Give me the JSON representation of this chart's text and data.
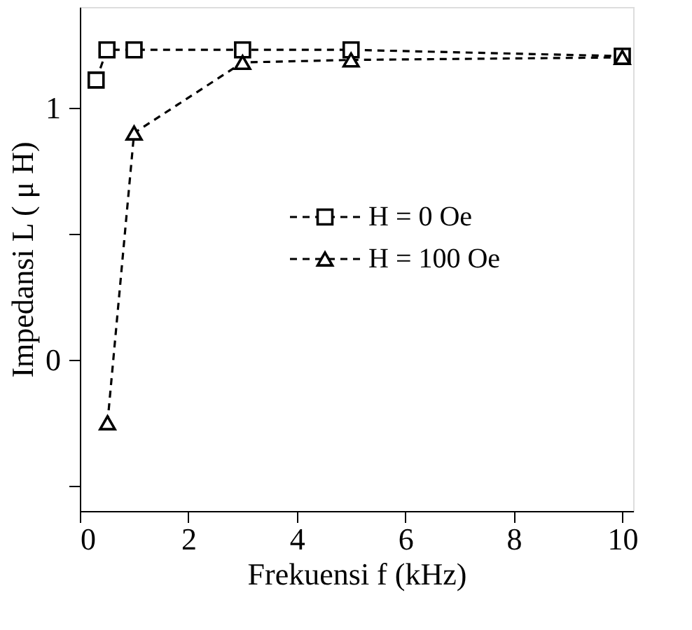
{
  "chart_data": {
    "type": "line",
    "xlabel": "Frekuensi f (kHz)",
    "ylabel": "Impedansi L ( μ H)",
    "xlim": [
      0,
      10.2
    ],
    "xticks": [
      0,
      2,
      4,
      6,
      8,
      10
    ],
    "ylim": [
      -0.6,
      1.4
    ],
    "yticks": [
      {
        "value": -0.5,
        "label": null
      },
      0,
      {
        "value": 0.5,
        "label": null
      },
      1
    ],
    "series": [
      {
        "name": "H = 0 Oe",
        "color": "#000000",
        "marker": "square",
        "x": [
          0.3,
          0.5,
          1,
          3,
          5,
          10
        ],
        "values": [
          1.11,
          1.23,
          1.23,
          1.23,
          1.23,
          1.205
        ]
      },
      {
        "name": "H = 100 Oe",
        "color": "#000000",
        "marker": "triangle",
        "x": [
          0.51,
          1,
          3,
          5,
          10
        ],
        "values": [
          -0.25,
          0.9,
          1.18,
          1.19,
          1.2
        ]
      }
    ],
    "line_style": "dashed",
    "grid": false,
    "legend": "right"
  }
}
